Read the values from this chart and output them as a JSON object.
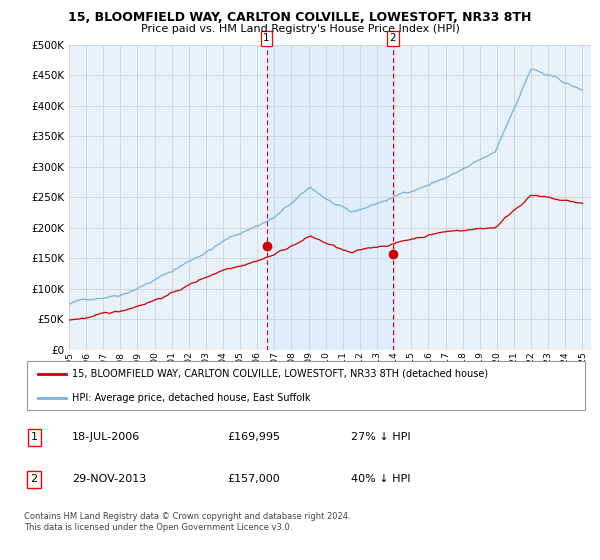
{
  "title": "15, BLOOMFIELD WAY, CARLTON COLVILLE, LOWESTOFT, NR33 8TH",
  "subtitle": "Price paid vs. HM Land Registry's House Price Index (HPI)",
  "sale1_date_label": "18-JUL-2006",
  "sale1_price": 169995,
  "sale1_year": 2006.54,
  "sale2_date_label": "29-NOV-2013",
  "sale2_price": 157000,
  "sale2_year": 2013.91,
  "legend_line1": "15, BLOOMFIELD WAY, CARLTON COLVILLE, LOWESTOFT, NR33 8TH (detached house)",
  "legend_line2": "HPI: Average price, detached house, East Suffolk",
  "note1_date": "18-JUL-2006",
  "note1_price": "£169,995",
  "note1_hpi": "27% ↓ HPI",
  "note2_date": "29-NOV-2013",
  "note2_price": "£157,000",
  "note2_hpi": "40% ↓ HPI",
  "footer": "Contains HM Land Registry data © Crown copyright and database right 2024.\nThis data is licensed under the Open Government Licence v3.0.",
  "hpi_color": "#7ab3d8",
  "price_color": "#cc0000",
  "marker_color": "#cc0000",
  "shade_color": "#ddeeff",
  "vline_color": "#cc0000",
  "grid_color": "#cccccc",
  "plot_bg": "#e8f0f8",
  "ylim": [
    0,
    500000
  ],
  "yticks": [
    0,
    50000,
    100000,
    150000,
    200000,
    250000,
    300000,
    350000,
    400000,
    450000,
    500000
  ],
  "xlabel_years": [
    1995,
    1996,
    1997,
    1998,
    1999,
    2000,
    2001,
    2002,
    2003,
    2004,
    2005,
    2006,
    2007,
    2008,
    2009,
    2010,
    2011,
    2012,
    2013,
    2014,
    2015,
    2016,
    2017,
    2018,
    2019,
    2020,
    2021,
    2022,
    2023,
    2024,
    2025
  ]
}
